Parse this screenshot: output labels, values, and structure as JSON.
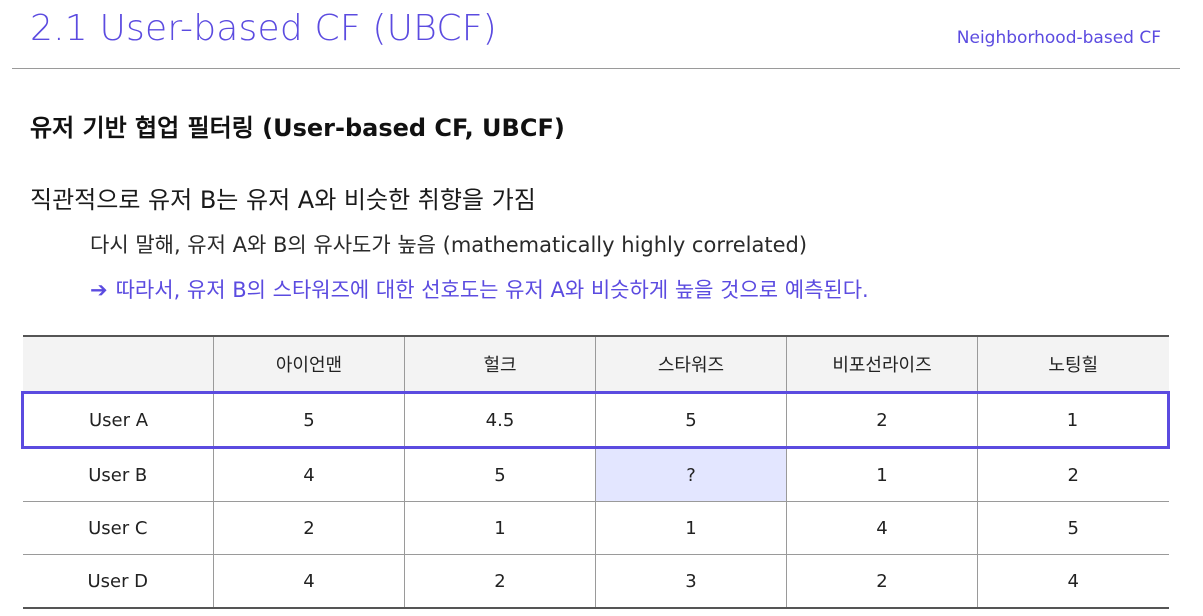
{
  "header": {
    "title": "2.1 User-based CF (UBCF)",
    "subtitle": "Neighborhood-based CF"
  },
  "section": {
    "heading": "유저 기반 협업 필터링 (User-based CF, UBCF)"
  },
  "points": {
    "main": "직관적으로 유저 B는 유저 A와 비슷한 취향을 가짐",
    "sub": "다시 말해, 유저 A와 B의 유사도가 높음 (mathematically highly correlated)",
    "conclusion_arrow": "➔",
    "conclusion": "따라서, 유저 B의 스타워즈에 대한 선호도는 유저 A와 비슷하게 높을 것으로 예측된다."
  },
  "table": {
    "columns": [
      "",
      "아이언맨",
      "헐크",
      "스타워즈",
      "비포선라이즈",
      "노팅힐"
    ],
    "rows": [
      {
        "user": "User A",
        "ratings": [
          "5",
          "4.5",
          "5",
          "2",
          "1"
        ]
      },
      {
        "user": "User B",
        "ratings": [
          "4",
          "5",
          "?",
          "1",
          "2"
        ]
      },
      {
        "user": "User C",
        "ratings": [
          "2",
          "1",
          "1",
          "4",
          "5"
        ]
      },
      {
        "user": "User D",
        "ratings": [
          "4",
          "2",
          "3",
          "2",
          "4"
        ]
      }
    ]
  },
  "colors": {
    "accent": "#5b4be0",
    "unknown_cell": "#e3e6ff",
    "header_bg": "#f3f3f3"
  }
}
